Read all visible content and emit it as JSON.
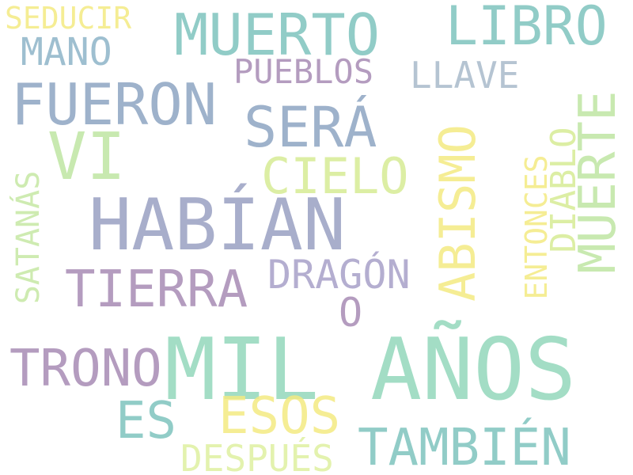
{
  "palette": {
    "background": "#ffffff",
    "teal": "#7ec4be",
    "blue_gray": "#8ea5c2",
    "slate_blue": "#9aa0c2",
    "mauve": "#a78bb5",
    "yellow": "#f4ea82",
    "light_green": "#bfe6a3",
    "mint": "#93d8bc",
    "pale_green": "#d7ec95"
  },
  "words": {
    "mil_anos": "MIL AÑOS",
    "habian": "HABÍAN",
    "muerto": "MUERTO",
    "libro": "LIBRO",
    "fueron": "FUERON",
    "sera": "SERÁ",
    "vi": "VI",
    "cielo": "CIELO",
    "tierra": "TIERRA",
    "trono": "TRONO",
    "es": "ES",
    "esos": "ESOS",
    "tambien": "TAMBIÉN",
    "despues": "DESPUÉS",
    "dragon": "DRAGÓN",
    "o": "O",
    "pueblos": "PUEBLOS",
    "llave": "LLAVE",
    "mano": "MANO",
    "seducir": "SEDUCIR",
    "abismo": "ABISMO",
    "muerte": "MUERTE",
    "diablo": "DIABLO",
    "entonces": "ENTONCES",
    "satanas": "SATANÁS"
  }
}
